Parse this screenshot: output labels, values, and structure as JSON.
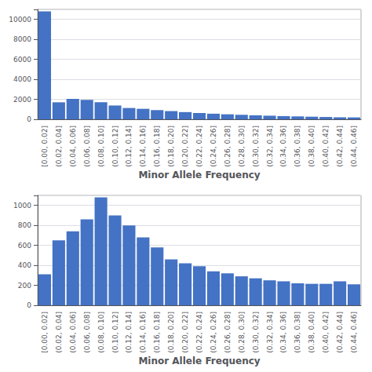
{
  "chart_data": [
    {
      "type": "bar",
      "xlabel": "Minor Allele Frequency",
      "categories": [
        "[0.00, 0.02]",
        "(0.02, 0.04]",
        "(0.04, 0.06]",
        "(0.06, 0.08]",
        "(0.08, 0.10]",
        "(0.10, 0.12]",
        "(0.12, 0.14]",
        "(0.14, 0.16]",
        "(0.16, 0.18]",
        "(0.18, 0.20]",
        "(0.20, 0.22]",
        "(0.22, 0.24]",
        "(0.24, 0.26]",
        "(0.26, 0.28]",
        "(0.28, 0.30]",
        "(0.30, 0.32]",
        "(0.32, 0.34]",
        "(0.34, 0.36]",
        "(0.36, 0.38]",
        "(0.38, 0.40]",
        "(0.40, 0.42]",
        "(0.42, 0.44]",
        "(0.44, 0.46]"
      ],
      "values": [
        10800,
        1700,
        2050,
        1950,
        1700,
        1380,
        1130,
        1050,
        920,
        820,
        720,
        630,
        560,
        500,
        450,
        400,
        360,
        320,
        290,
        260,
        230,
        200,
        190
      ],
      "color": "#4472C4",
      "ylim": [
        0,
        11000
      ],
      "yticks": [
        0,
        2000,
        4000,
        6000,
        8000,
        10000
      ],
      "grid": true
    },
    {
      "type": "bar",
      "xlabel": "Minor Allele Frequency",
      "categories": [
        "[0.00, 0.02]",
        "(0.02, 0.04]",
        "(0.04, 0.06]",
        "(0.06, 0.08]",
        "(0.08, 0.10]",
        "(0.10, 0.12]",
        "(0.12, 0.14]",
        "(0.14, 0.16]",
        "(0.16, 0.18]",
        "(0.18, 0.20]",
        "(0.20, 0.22]",
        "(0.22, 0.24]",
        "(0.24, 0.26]",
        "(0.26, 0.28]",
        "(0.28, 0.30]",
        "(0.30, 0.32]",
        "(0.32, 0.34]",
        "(0.34, 0.36]",
        "(0.36, 0.38]",
        "(0.38, 0.40]",
        "(0.40, 0.42]",
        "(0.42, 0.44]",
        "(0.44, 0.46]"
      ],
      "values": [
        310,
        650,
        740,
        860,
        1080,
        900,
        800,
        680,
        580,
        460,
        420,
        390,
        340,
        320,
        290,
        270,
        250,
        240,
        220,
        215,
        215,
        240,
        210
      ],
      "color": "#4472C4",
      "ylim": [
        0,
        1100
      ],
      "yticks": [
        0,
        200,
        400,
        600,
        800,
        1000
      ],
      "grid": true
    }
  ]
}
